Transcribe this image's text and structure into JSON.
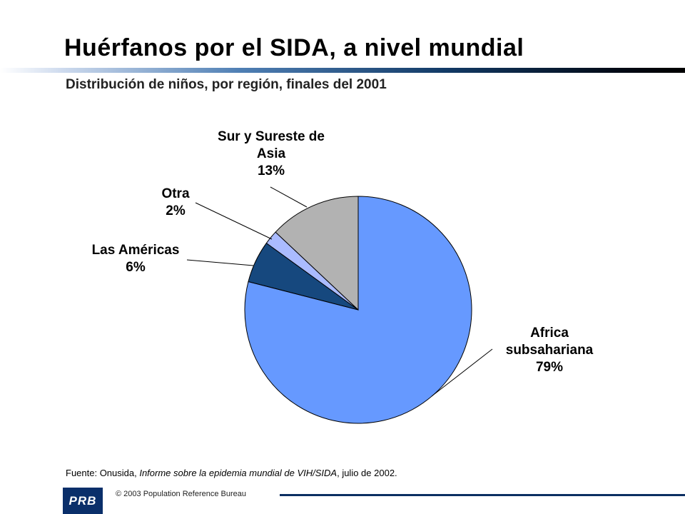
{
  "slide": {
    "title": "Huérfanos por el SIDA, a nivel mundial",
    "subtitle": "Distribución de niños, por región, finales del 2001"
  },
  "chart_data": {
    "type": "pie",
    "title": "Huérfanos por el SIDA, a nivel mundial",
    "subtitle": "Distribución de niños, por región, finales del 2001",
    "start_angle_deg": 0,
    "direction": "clockwise",
    "slices": [
      {
        "label_lines": [
          "Africa",
          "subsahariana"
        ],
        "value": 79,
        "display": "79%",
        "color": "#6699FF"
      },
      {
        "label_lines": [
          "Las Américas"
        ],
        "value": 6,
        "display": "6%",
        "color": "#16487E"
      },
      {
        "label_lines": [
          "Otra"
        ],
        "value": 2,
        "display": "2%",
        "color": "#AABBFF"
      },
      {
        "label_lines": [
          "Sur y Sureste de",
          "Asia"
        ],
        "value": 13,
        "display": "13%",
        "color": "#B2B2B2"
      }
    ]
  },
  "source": {
    "prefix": "Fuente: Onusida, ",
    "publication": "Informe sobre la epidemia mundial de VIH/SIDA",
    "suffix": ", julio de 2002."
  },
  "footer": {
    "logo_text": "PRB",
    "copyright": "© 2003 Population Reference Bureau"
  }
}
